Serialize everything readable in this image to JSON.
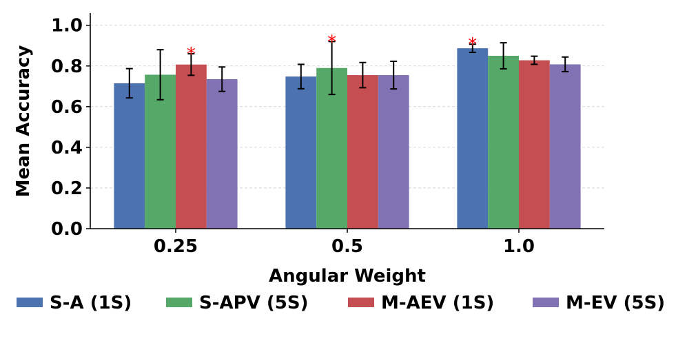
{
  "chart_data": {
    "type": "bar",
    "xlabel": "Angular Weight",
    "ylabel": "Mean Accuracy",
    "categories": [
      "0.25",
      "0.5",
      "1.0"
    ],
    "ylim": [
      0,
      1.06
    ],
    "yticks": [
      0.0,
      0.2,
      0.4,
      0.6,
      0.8,
      1.0
    ],
    "ytick_labels": [
      "0.0",
      "0.2",
      "0.4",
      "0.6",
      "0.8",
      "1.0"
    ],
    "grid": true,
    "legend_position": "bottom",
    "series": [
      {
        "name": "S-A (1S)",
        "color": "#4c72b0",
        "values": [
          0.715,
          0.748,
          0.887
        ],
        "errors": [
          0.072,
          0.06,
          0.02
        ]
      },
      {
        "name": "S-APV (5S)",
        "color": "#55a868",
        "values": [
          0.757,
          0.79,
          0.85
        ],
        "errors": [
          0.123,
          0.13,
          0.064
        ]
      },
      {
        "name": "M-AEV (1S)",
        "color": "#c44e52",
        "values": [
          0.807,
          0.755,
          0.828
        ],
        "errors": [
          0.053,
          0.062,
          0.02
        ]
      },
      {
        "name": "M-EV (5S)",
        "color": "#8172b3",
        "values": [
          0.735,
          0.755,
          0.808
        ],
        "errors": [
          0.06,
          0.068,
          0.036
        ]
      }
    ],
    "annotations": [
      {
        "text": "*",
        "category": "0.25",
        "series": "M-AEV (1S)"
      },
      {
        "text": "*",
        "category": "0.5",
        "series": "S-APV (5S)"
      },
      {
        "text": "*",
        "category": "1.0",
        "series": "S-A (1S)"
      }
    ],
    "annotation_color": "#ff0000",
    "error_color": "#000000"
  }
}
